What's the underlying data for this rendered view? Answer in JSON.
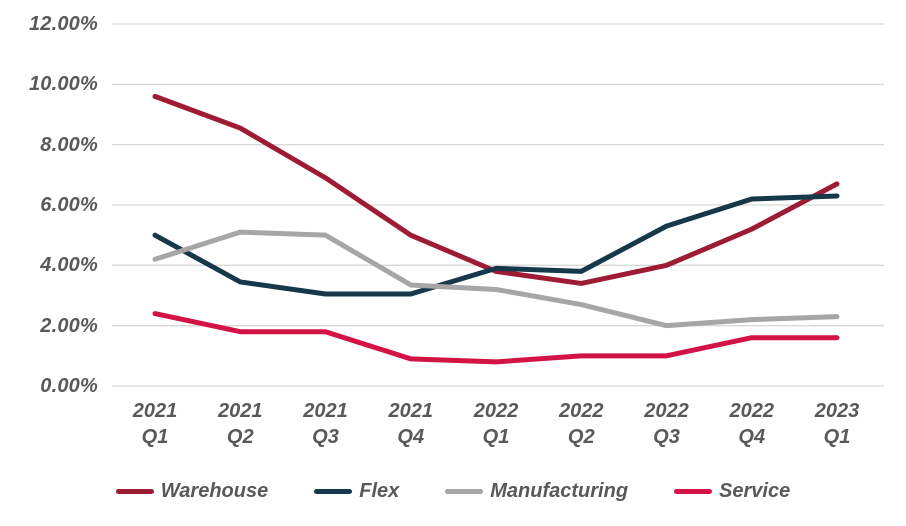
{
  "chart_data": {
    "type": "line",
    "title": "",
    "xlabel": "",
    "ylabel": "",
    "categories": [
      {
        "line1": "2021",
        "line2": "Q1"
      },
      {
        "line1": "2021",
        "line2": "Q2"
      },
      {
        "line1": "2021",
        "line2": "Q3"
      },
      {
        "line1": "2021",
        "line2": "Q4"
      },
      {
        "line1": "2022",
        "line2": "Q1"
      },
      {
        "line1": "2022",
        "line2": "Q2"
      },
      {
        "line1": "2022",
        "line2": "Q3"
      },
      {
        "line1": "2022",
        "line2": "Q4"
      },
      {
        "line1": "2023",
        "line2": "Q1"
      }
    ],
    "series": [
      {
        "name": "Warehouse",
        "color": "#9E1B34",
        "values": [
          9.6,
          8.55,
          6.9,
          5.0,
          3.8,
          3.4,
          4.0,
          5.2,
          6.7
        ]
      },
      {
        "name": "Flex",
        "color": "#16384A",
        "values": [
          5.0,
          3.45,
          3.05,
          3.05,
          3.9,
          3.8,
          5.3,
          6.2,
          6.3
        ]
      },
      {
        "name": "Manufacturing",
        "color": "#A6A6A6",
        "values": [
          4.2,
          5.1,
          5.0,
          3.35,
          3.2,
          2.7,
          2.0,
          2.2,
          2.3
        ]
      },
      {
        "name": "Service",
        "color": "#D31245",
        "values": [
          2.4,
          1.8,
          1.8,
          0.9,
          0.8,
          1.0,
          1.0,
          1.6,
          1.6
        ]
      }
    ],
    "y_axis": {
      "min": 0,
      "max": 12,
      "tick_step": 2,
      "tick_labels": [
        "0.00%",
        "2.00%",
        "4.00%",
        "6.00%",
        "8.00%",
        "10.00%",
        "12.00%"
      ]
    },
    "grid": "horizontal",
    "legend_position": "bottom",
    "text_color": "#595959",
    "gridline_color": "#D9D9D9",
    "line_width": 5
  }
}
